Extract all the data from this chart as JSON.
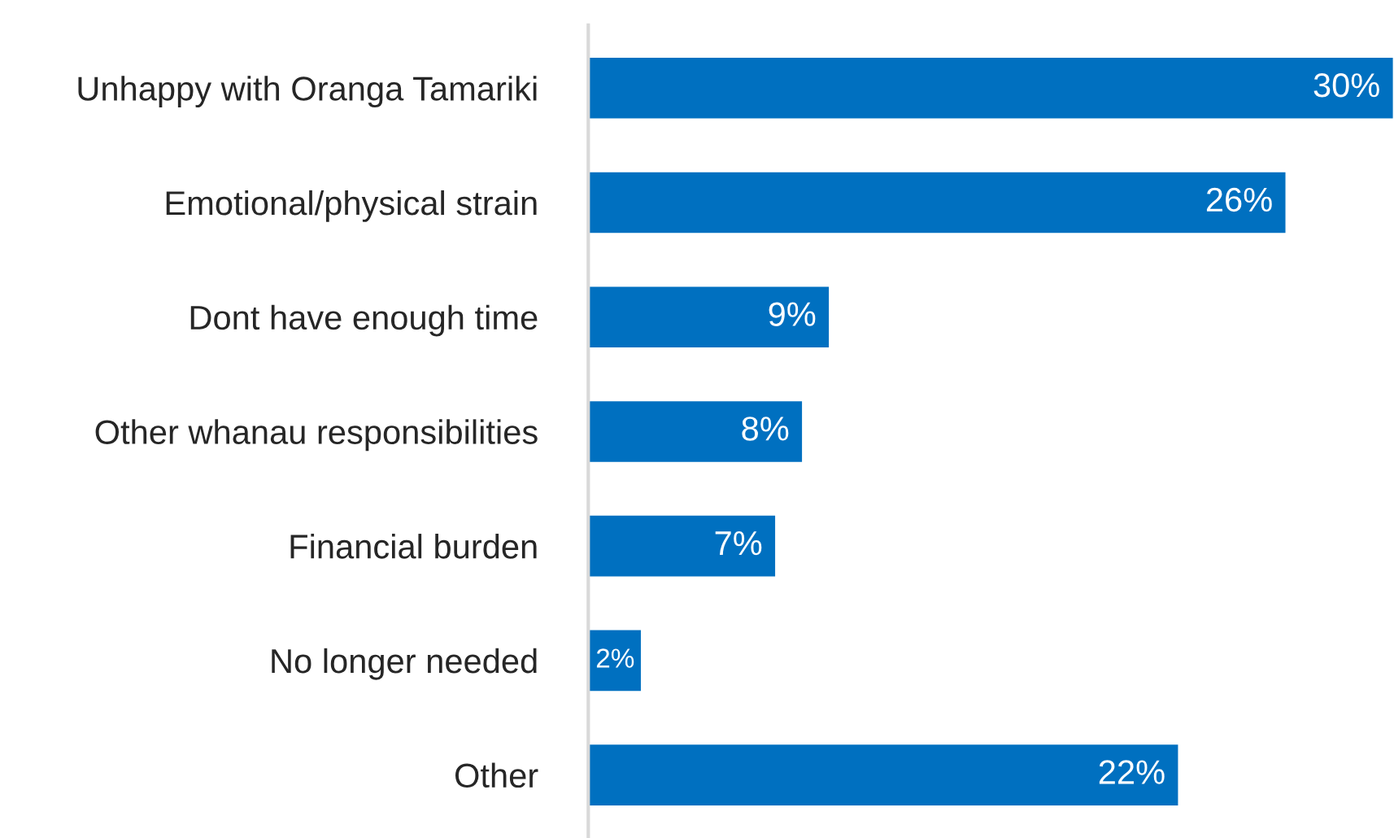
{
  "chart_data": {
    "type": "bar",
    "orientation": "horizontal",
    "categories": [
      "Unhappy with Oranga Tamariki",
      "Emotional/physical strain",
      "Dont have enough time",
      "Other whanau responsibilities",
      "Financial burden",
      "No longer needed",
      "Other"
    ],
    "values": [
      30,
      26,
      9,
      8,
      7,
      2,
      22
    ],
    "value_labels": [
      "30%",
      "26%",
      "9%",
      "8%",
      "7%",
      "2%",
      "22%"
    ],
    "color": "#0070c0",
    "tick_labels": "y",
    "grid": false,
    "legend": false
  }
}
